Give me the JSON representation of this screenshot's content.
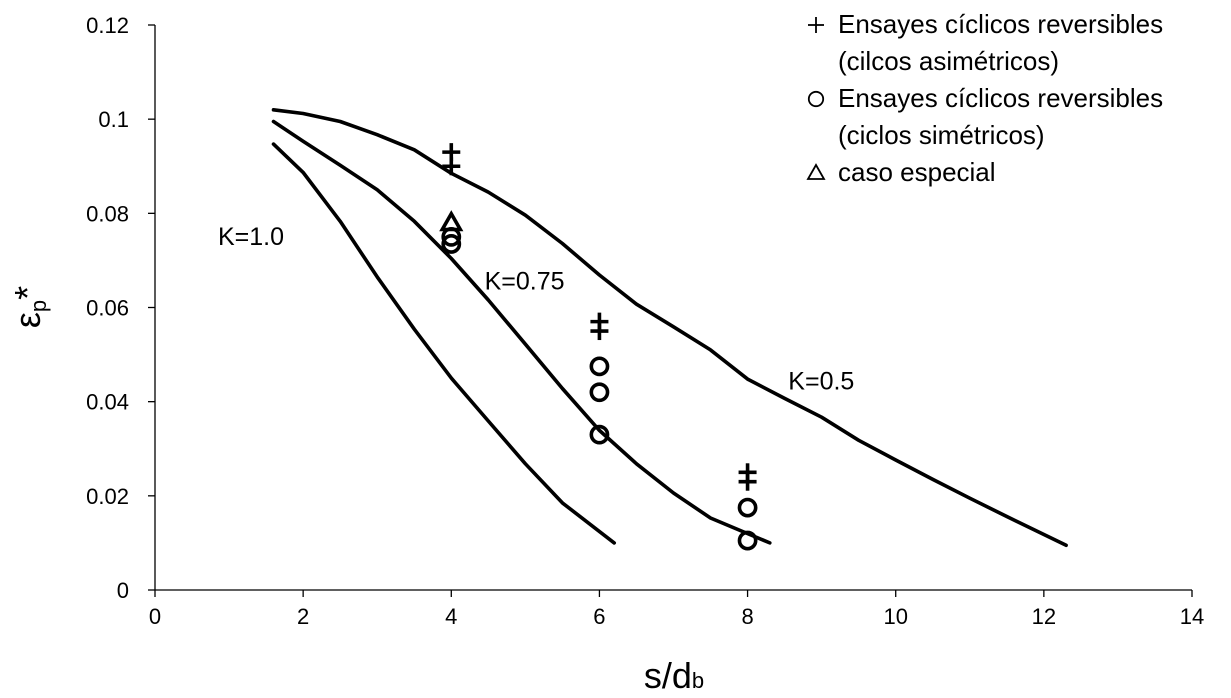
{
  "chart_data": {
    "type": "scatter",
    "xlabel": "s/d",
    "xlabel_sub": "b",
    "ylabel": "εp*",
    "ylabel_main": "ε",
    "ylabel_sub": "p",
    "ylabel_sup": "*",
    "xlim": [
      0,
      14
    ],
    "ylim": [
      0,
      0.12
    ],
    "xticks": [
      "0",
      "2",
      "4",
      "6",
      "8",
      "10",
      "12",
      "14"
    ],
    "yticks": [
      "0",
      "0.02",
      "0.04",
      "0.06",
      "0.08",
      "0.1",
      "0.12"
    ],
    "grid": false,
    "legend_position": "top-right",
    "curves": [
      {
        "label": "K=1.0",
        "points": [
          [
            1.6,
            0.0947
          ],
          [
            2.0,
            0.0887
          ],
          [
            2.5,
            0.0783
          ],
          [
            3.0,
            0.0665
          ],
          [
            3.5,
            0.0554
          ],
          [
            4.0,
            0.045
          ],
          [
            4.5,
            0.0359
          ],
          [
            5.0,
            0.0268
          ],
          [
            5.5,
            0.0185
          ],
          [
            6.2,
            0.01
          ]
        ]
      },
      {
        "label": "K=0.75",
        "points": [
          [
            1.6,
            0.0995
          ],
          [
            2.0,
            0.0953
          ],
          [
            2.5,
            0.0902
          ],
          [
            3.0,
            0.085
          ],
          [
            3.5,
            0.0783
          ],
          [
            4.0,
            0.0704
          ],
          [
            4.5,
            0.0616
          ],
          [
            5.0,
            0.0522
          ],
          [
            5.5,
            0.0428
          ],
          [
            6.0,
            0.0339
          ],
          [
            6.5,
            0.0268
          ],
          [
            7.0,
            0.0206
          ],
          [
            7.5,
            0.0153
          ],
          [
            8.3,
            0.01
          ]
        ]
      },
      {
        "label": "K=0.5",
        "points": [
          [
            1.6,
            0.102
          ],
          [
            2.0,
            0.1012
          ],
          [
            2.5,
            0.0995
          ],
          [
            3.0,
            0.0967
          ],
          [
            3.5,
            0.0935
          ],
          [
            4.0,
            0.0885
          ],
          [
            4.5,
            0.0845
          ],
          [
            5.0,
            0.0796
          ],
          [
            5.5,
            0.0736
          ],
          [
            6.0,
            0.0669
          ],
          [
            6.5,
            0.0607
          ],
          [
            7.0,
            0.0559
          ],
          [
            7.5,
            0.051
          ],
          [
            8.0,
            0.0448
          ],
          [
            8.5,
            0.0407
          ],
          [
            9.0,
            0.0367
          ],
          [
            9.5,
            0.0318
          ],
          [
            10.0,
            0.0276
          ],
          [
            10.5,
            0.0235
          ],
          [
            11.0,
            0.0195
          ],
          [
            11.5,
            0.0156
          ],
          [
            12.3,
            0.0095
          ]
        ]
      }
    ],
    "series": [
      {
        "name": "Ensayes cíclicos reversibles (cilcos asimétricos)",
        "marker": "plus",
        "points": [
          [
            4,
            0.09
          ],
          [
            4,
            0.093
          ],
          [
            6,
            0.055
          ],
          [
            6,
            0.057
          ],
          [
            8,
            0.023
          ],
          [
            8,
            0.025
          ]
        ]
      },
      {
        "name": "Ensayes cíclicos reversibles (ciclos simétricos)",
        "marker": "circle",
        "points": [
          [
            4,
            0.0735
          ],
          [
            4,
            0.075
          ],
          [
            6,
            0.0475
          ],
          [
            6,
            0.042
          ],
          [
            6,
            0.033
          ],
          [
            8,
            0.0175
          ],
          [
            8,
            0.0105
          ]
        ]
      },
      {
        "name": "caso especial",
        "marker": "triangle",
        "points": [
          [
            4,
            0.078
          ]
        ]
      }
    ],
    "annotations": [
      {
        "text": "K=1.0",
        "x": 0.85,
        "y": 0.0733
      },
      {
        "text": "K=0.75",
        "x": 4.45,
        "y": 0.0638
      },
      {
        "text": "K=0.5",
        "x": 8.55,
        "y": 0.0426
      }
    ],
    "legend": [
      {
        "marker": "plus",
        "lines": [
          "Ensayes cíclicos reversibles",
          "(cilcos asimétricos)"
        ]
      },
      {
        "marker": "circle",
        "lines": [
          "Ensayes cíclicos reversibles",
          "(ciclos simétricos)"
        ]
      },
      {
        "marker": "triangle",
        "lines": [
          "caso especial"
        ]
      }
    ]
  }
}
